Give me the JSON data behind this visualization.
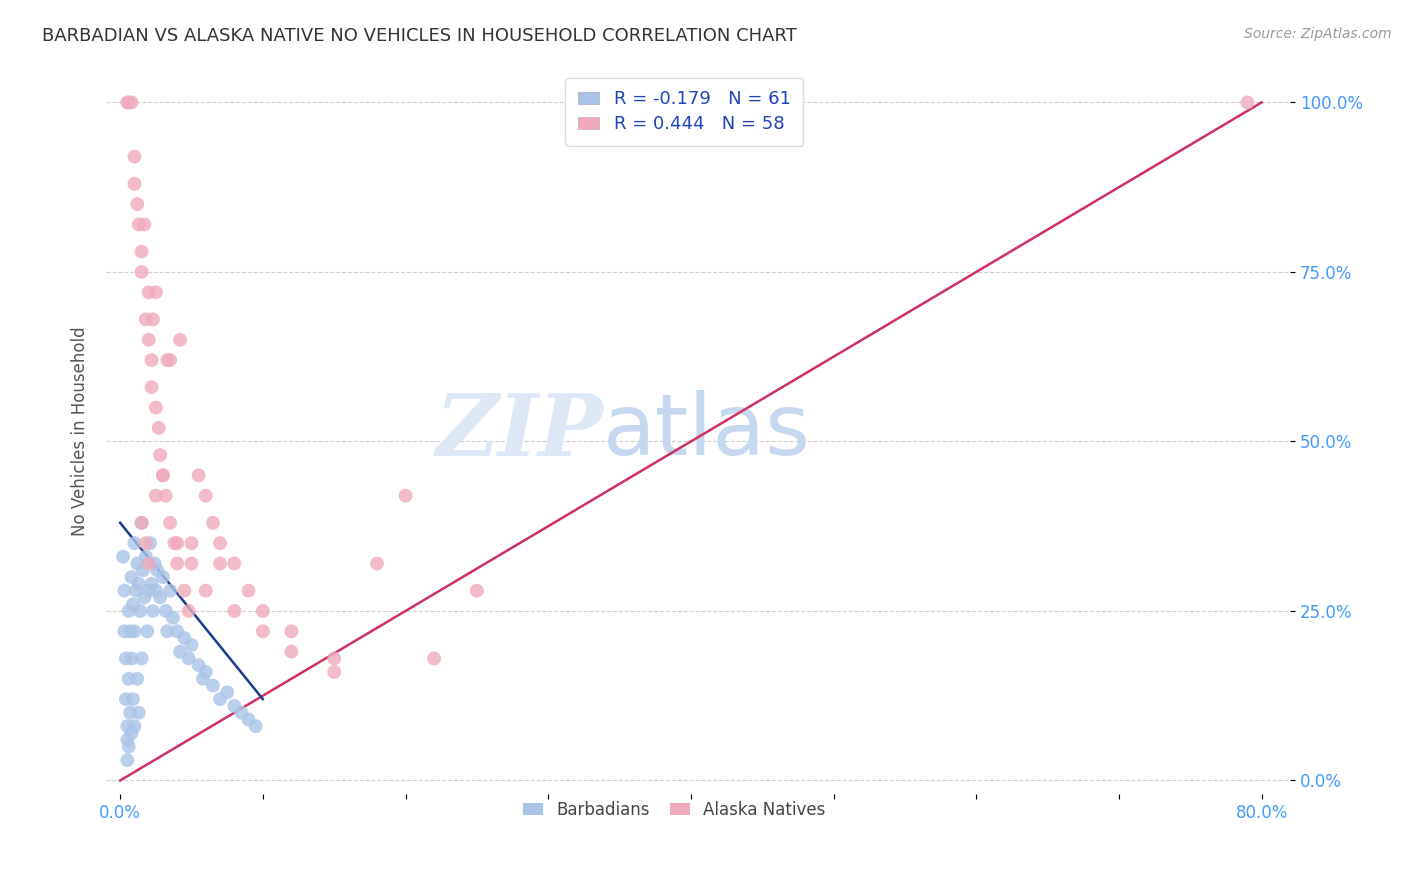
{
  "title": "BARBADIAN VS ALASKA NATIVE NO VEHICLES IN HOUSEHOLD CORRELATION CHART",
  "source": "Source: ZipAtlas.com",
  "ylabel": "No Vehicles in Household",
  "xlim": [
    0.0,
    0.8
  ],
  "ylim": [
    0.0,
    1.0
  ],
  "barbadian_color": "#a8c4e8",
  "alaska_color": "#f0aabb",
  "barbadian_line_color": "#1a3a8c",
  "alaska_line_color": "#d03060",
  "grid_color": "#d0d0d0",
  "background_color": "#ffffff",
  "legend_label1": "R = -0.179   N = 61",
  "legend_label2": "R = 0.444   N = 58",
  "bottom_label1": "Barbadians",
  "bottom_label2": "Alaska Natives",
  "tick_color": "#4499ff",
  "title_color": "#333333",
  "source_color": "#999999",
  "ylabel_color": "#555555",
  "barbadian_x": [
    0.002,
    0.003,
    0.003,
    0.004,
    0.004,
    0.005,
    0.005,
    0.005,
    0.006,
    0.006,
    0.006,
    0.007,
    0.007,
    0.008,
    0.008,
    0.008,
    0.009,
    0.009,
    0.01,
    0.01,
    0.01,
    0.011,
    0.012,
    0.012,
    0.013,
    0.013,
    0.014,
    0.015,
    0.015,
    0.016,
    0.017,
    0.018,
    0.019,
    0.02,
    0.021,
    0.022,
    0.023,
    0.024,
    0.025,
    0.026,
    0.028,
    0.03,
    0.032,
    0.033,
    0.035,
    0.037,
    0.04,
    0.042,
    0.045,
    0.048,
    0.05,
    0.055,
    0.058,
    0.06,
    0.065,
    0.07,
    0.075,
    0.08,
    0.085,
    0.09,
    0.095
  ],
  "barbadian_y": [
    0.33,
    0.28,
    0.22,
    0.18,
    0.12,
    0.08,
    0.06,
    0.03,
    0.25,
    0.15,
    0.05,
    0.22,
    0.1,
    0.3,
    0.18,
    0.07,
    0.26,
    0.12,
    0.35,
    0.22,
    0.08,
    0.28,
    0.32,
    0.15,
    0.29,
    0.1,
    0.25,
    0.38,
    0.18,
    0.31,
    0.27,
    0.33,
    0.22,
    0.28,
    0.35,
    0.29,
    0.25,
    0.32,
    0.28,
    0.31,
    0.27,
    0.3,
    0.25,
    0.22,
    0.28,
    0.24,
    0.22,
    0.19,
    0.21,
    0.18,
    0.2,
    0.17,
    0.15,
    0.16,
    0.14,
    0.12,
    0.13,
    0.11,
    0.1,
    0.09,
    0.08
  ],
  "alaska_x": [
    0.005,
    0.006,
    0.008,
    0.01,
    0.01,
    0.012,
    0.013,
    0.015,
    0.015,
    0.017,
    0.018,
    0.02,
    0.02,
    0.022,
    0.023,
    0.025,
    0.025,
    0.027,
    0.028,
    0.03,
    0.032,
    0.033,
    0.035,
    0.038,
    0.04,
    0.042,
    0.045,
    0.048,
    0.05,
    0.055,
    0.06,
    0.065,
    0.07,
    0.08,
    0.09,
    0.1,
    0.12,
    0.15,
    0.18,
    0.2,
    0.22,
    0.25,
    0.015,
    0.018,
    0.02,
    0.022,
    0.025,
    0.03,
    0.035,
    0.04,
    0.05,
    0.06,
    0.07,
    0.08,
    0.1,
    0.12,
    0.15,
    0.79
  ],
  "alaska_y": [
    1.0,
    1.0,
    1.0,
    0.92,
    0.88,
    0.85,
    0.82,
    0.78,
    0.75,
    0.82,
    0.68,
    0.65,
    0.72,
    0.62,
    0.68,
    0.55,
    0.72,
    0.52,
    0.48,
    0.45,
    0.42,
    0.62,
    0.38,
    0.35,
    0.32,
    0.65,
    0.28,
    0.25,
    0.32,
    0.45,
    0.42,
    0.38,
    0.35,
    0.32,
    0.28,
    0.25,
    0.22,
    0.18,
    0.32,
    0.42,
    0.18,
    0.28,
    0.38,
    0.35,
    0.32,
    0.58,
    0.42,
    0.45,
    0.62,
    0.35,
    0.35,
    0.28,
    0.32,
    0.25,
    0.22,
    0.19,
    0.16,
    1.0
  ],
  "alaska_line_x0": 0.0,
  "alaska_line_y0": 0.0,
  "alaska_line_x1": 0.8,
  "alaska_line_y1": 1.0,
  "barb_line_x0": 0.0,
  "barb_line_y0": 0.38,
  "barb_line_x1": 0.1,
  "barb_line_y1": 0.12
}
